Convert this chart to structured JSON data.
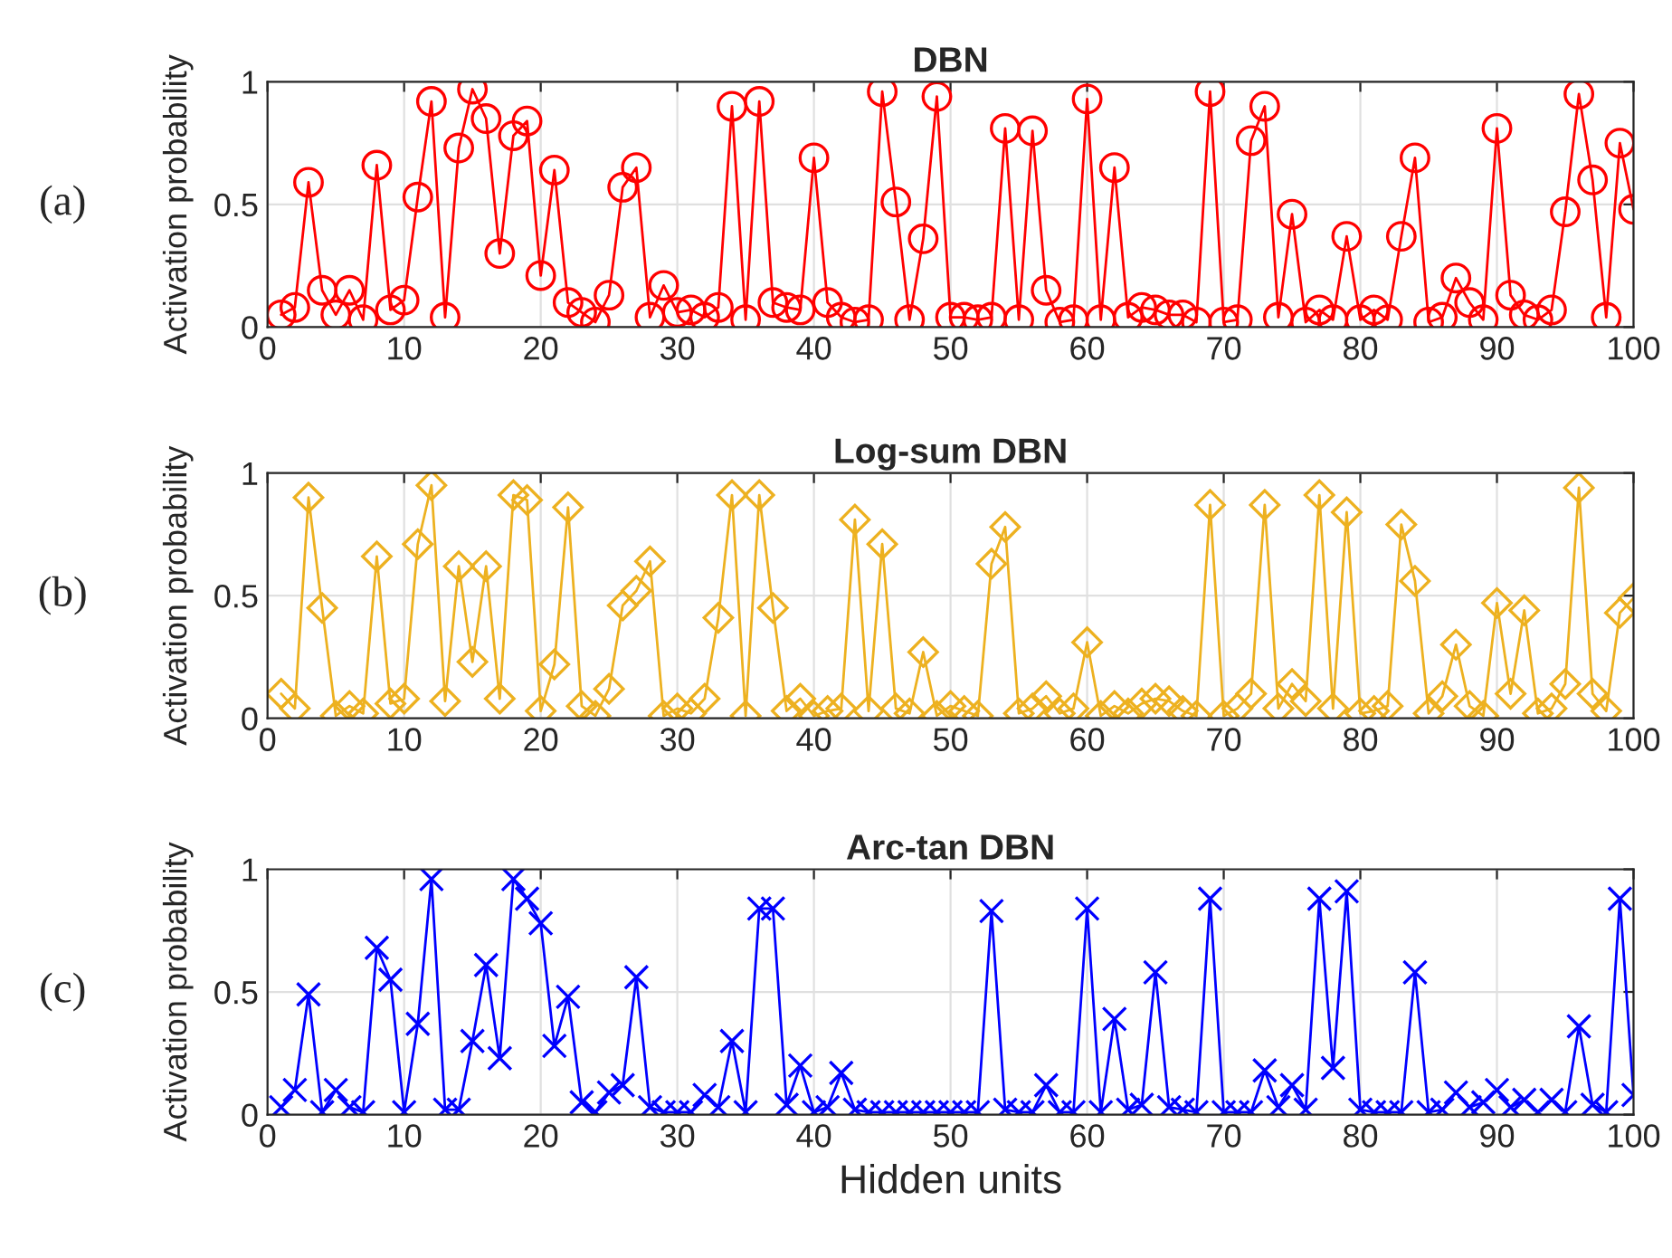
{
  "chart_data": [
    {
      "type": "line",
      "title": "DBN",
      "ylabel": "Activation probability",
      "annotations": [
        "(a)"
      ],
      "marker": "circle",
      "line_style": "solid",
      "grid": true,
      "xlim": [
        0,
        100
      ],
      "xticks": [
        0,
        10,
        20,
        30,
        40,
        50,
        60,
        70,
        80,
        90,
        100
      ],
      "ylim": [
        0,
        1
      ],
      "yticks": [
        0,
        0.5,
        1
      ],
      "x": [
        1,
        2,
        3,
        4,
        5,
        6,
        7,
        8,
        9,
        10,
        11,
        12,
        13,
        14,
        15,
        16,
        17,
        18,
        19,
        20,
        21,
        22,
        23,
        24,
        25,
        26,
        27,
        28,
        29,
        30,
        31,
        32,
        33,
        34,
        35,
        36,
        37,
        38,
        39,
        40,
        41,
        42,
        43,
        44,
        45,
        46,
        47,
        48,
        49,
        50,
        51,
        52,
        53,
        54,
        55,
        56,
        57,
        58,
        59,
        60,
        61,
        62,
        63,
        64,
        65,
        66,
        67,
        68,
        69,
        70,
        71,
        72,
        73,
        74,
        75,
        76,
        77,
        78,
        79,
        80,
        81,
        82,
        83,
        84,
        85,
        86,
        87,
        88,
        89,
        90,
        91,
        92,
        93,
        94,
        95,
        96,
        97,
        98,
        99,
        100
      ],
      "series": [
        {
          "color": "#ff0000",
          "values": [
            0.05,
            0.08,
            0.59,
            0.15,
            0.05,
            0.15,
            0.03,
            0.66,
            0.07,
            0.11,
            0.53,
            0.92,
            0.04,
            0.73,
            0.97,
            0.85,
            0.3,
            0.78,
            0.84,
            0.21,
            0.64,
            0.1,
            0.06,
            0.02,
            0.13,
            0.57,
            0.65,
            0.04,
            0.17,
            0.06,
            0.07,
            0.04,
            0.08,
            0.9,
            0.03,
            0.92,
            0.1,
            0.08,
            0.07,
            0.69,
            0.1,
            0.04,
            0.02,
            0.03,
            0.96,
            0.51,
            0.03,
            0.36,
            0.94,
            0.04,
            0.04,
            0.03,
            0.04,
            0.81,
            0.03,
            0.8,
            0.15,
            0.02,
            0.03,
            0.93,
            0.03,
            0.65,
            0.04,
            0.08,
            0.07,
            0.05,
            0.05,
            0.02,
            0.96,
            0.02,
            0.03,
            0.76,
            0.9,
            0.04,
            0.46,
            0.02,
            0.07,
            0.03,
            0.37,
            0.03,
            0.07,
            0.03,
            0.37,
            0.69,
            0.02,
            0.04,
            0.2,
            0.1,
            0.03,
            0.81,
            0.13,
            0.05,
            0.03,
            0.07,
            0.47,
            0.95,
            0.6,
            0.04,
            0.75,
            0.48
          ]
        }
      ]
    },
    {
      "type": "line",
      "title": "Log-sum DBN",
      "ylabel": "Activation probability",
      "annotations": [
        "(b)"
      ],
      "marker": "diamond",
      "line_style": "solid",
      "grid": true,
      "xlim": [
        0,
        100
      ],
      "xticks": [
        0,
        10,
        20,
        30,
        40,
        50,
        60,
        70,
        80,
        90,
        100
      ],
      "ylim": [
        0,
        1
      ],
      "yticks": [
        0,
        0.5,
        1
      ],
      "x": [
        1,
        2,
        3,
        4,
        5,
        6,
        7,
        8,
        9,
        10,
        11,
        12,
        13,
        14,
        15,
        16,
        17,
        18,
        19,
        20,
        21,
        22,
        23,
        24,
        25,
        26,
        27,
        28,
        29,
        30,
        31,
        32,
        33,
        34,
        35,
        36,
        37,
        38,
        39,
        40,
        41,
        42,
        43,
        44,
        45,
        46,
        47,
        48,
        49,
        50,
        51,
        52,
        53,
        54,
        55,
        56,
        57,
        58,
        59,
        60,
        61,
        62,
        63,
        64,
        65,
        66,
        67,
        68,
        69,
        70,
        71,
        72,
        73,
        74,
        75,
        76,
        77,
        78,
        79,
        80,
        81,
        82,
        83,
        84,
        85,
        86,
        87,
        88,
        89,
        90,
        91,
        92,
        93,
        94,
        95,
        96,
        97,
        98,
        99,
        100
      ],
      "series": [
        {
          "color": "#edb120",
          "values": [
            0.1,
            0.04,
            0.9,
            0.45,
            0.01,
            0.05,
            0.02,
            0.66,
            0.06,
            0.08,
            0.71,
            0.95,
            0.07,
            0.62,
            0.23,
            0.62,
            0.08,
            0.91,
            0.89,
            0.03,
            0.22,
            0.86,
            0.05,
            0.01,
            0.12,
            0.46,
            0.52,
            0.64,
            0.01,
            0.04,
            0.02,
            0.08,
            0.41,
            0.91,
            0.01,
            0.91,
            0.45,
            0.03,
            0.08,
            0.01,
            0.03,
            0.04,
            0.81,
            0.03,
            0.71,
            0.04,
            0.02,
            0.27,
            0.01,
            0.05,
            0.03,
            0.01,
            0.63,
            0.78,
            0.02,
            0.04,
            0.09,
            0.02,
            0.04,
            0.31,
            0.01,
            0.05,
            0.02,
            0.06,
            0.08,
            0.07,
            0.03,
            0.01,
            0.87,
            0.01,
            0.04,
            0.1,
            0.87,
            0.04,
            0.14,
            0.07,
            0.91,
            0.04,
            0.84,
            0.02,
            0.03,
            0.05,
            0.79,
            0.56,
            0.02,
            0.09,
            0.3,
            0.05,
            0.01,
            0.47,
            0.1,
            0.44,
            0.02,
            0.04,
            0.14,
            0.94,
            0.1,
            0.03,
            0.43,
            0.49
          ]
        }
      ]
    },
    {
      "type": "line",
      "title": "Arc-tan DBN",
      "xlabel": "Hidden units",
      "ylabel": "Activation probability",
      "annotations": [
        "(c)"
      ],
      "marker": "cross",
      "line_style": "solid",
      "grid": true,
      "xlim": [
        0,
        100
      ],
      "xticks": [
        0,
        10,
        20,
        30,
        40,
        50,
        60,
        70,
        80,
        90,
        100
      ],
      "ylim": [
        0,
        1
      ],
      "yticks": [
        0,
        0.5,
        1
      ],
      "x": [
        1,
        2,
        3,
        4,
        5,
        6,
        7,
        8,
        9,
        10,
        11,
        12,
        13,
        14,
        15,
        16,
        17,
        18,
        19,
        20,
        21,
        22,
        23,
        24,
        25,
        26,
        27,
        28,
        29,
        30,
        31,
        32,
        33,
        34,
        35,
        36,
        37,
        38,
        39,
        40,
        41,
        42,
        43,
        44,
        45,
        46,
        47,
        48,
        49,
        50,
        51,
        52,
        53,
        54,
        55,
        56,
        57,
        58,
        59,
        60,
        61,
        62,
        63,
        64,
        65,
        66,
        67,
        68,
        69,
        70,
        71,
        72,
        73,
        74,
        75,
        76,
        77,
        78,
        79,
        80,
        81,
        82,
        83,
        84,
        85,
        86,
        87,
        88,
        89,
        90,
        91,
        92,
        93,
        94,
        95,
        96,
        97,
        98,
        99,
        100
      ],
      "series": [
        {
          "color": "#0000ff",
          "values": [
            0.03,
            0.1,
            0.49,
            0.01,
            0.1,
            0.03,
            0.01,
            0.68,
            0.55,
            0.01,
            0.37,
            0.96,
            0.02,
            0.02,
            0.3,
            0.61,
            0.23,
            0.96,
            0.88,
            0.78,
            0.28,
            0.48,
            0.05,
            0.01,
            0.09,
            0.12,
            0.56,
            0.03,
            0.01,
            0.01,
            0.01,
            0.08,
            0.03,
            0.3,
            0.01,
            0.84,
            0.84,
            0.04,
            0.2,
            0.01,
            0.03,
            0.17,
            0.02,
            0.01,
            0.01,
            0.01,
            0.01,
            0.01,
            0.01,
            0.01,
            0.01,
            0.01,
            0.83,
            0.02,
            0.01,
            0.01,
            0.12,
            0.01,
            0.01,
            0.84,
            0.01,
            0.39,
            0.02,
            0.04,
            0.58,
            0.03,
            0.02,
            0.01,
            0.88,
            0.01,
            0.01,
            0.01,
            0.18,
            0.03,
            0.12,
            0.02,
            0.88,
            0.19,
            0.91,
            0.02,
            0.01,
            0.01,
            0.01,
            0.58,
            0.01,
            0.02,
            0.09,
            0.03,
            0.05,
            0.1,
            0.03,
            0.06,
            0.01,
            0.06,
            0.01,
            0.36,
            0.04,
            0.01,
            0.88,
            0.08
          ]
        }
      ]
    }
  ]
}
